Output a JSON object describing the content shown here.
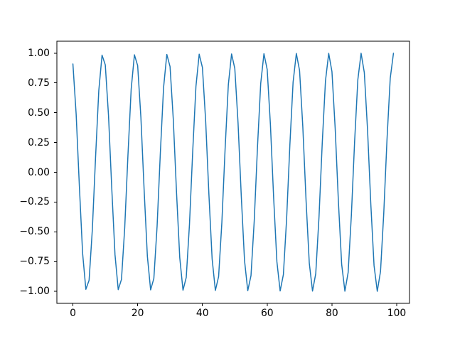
{
  "figure": {
    "background": "#ffffff",
    "axes_color": "#000000",
    "tick_label_color": "#000000"
  },
  "chart_data": {
    "type": "line",
    "title": "",
    "xlabel": "",
    "ylabel": "",
    "grid": false,
    "legend": null,
    "xlim": [
      -4.95,
      103.95
    ],
    "ylim": [
      -1.1,
      1.1
    ],
    "xticks": {
      "values": [
        0,
        20,
        40,
        60,
        80,
        100
      ],
      "labels": [
        "0",
        "20",
        "40",
        "60",
        "80",
        "100"
      ]
    },
    "yticks": {
      "values": [
        1.0,
        0.75,
        0.5,
        0.25,
        0.0,
        -0.25,
        -0.5,
        -0.75,
        -1.0
      ],
      "labels": [
        "1.00",
        "0.75",
        "0.50",
        "0.25",
        "0.00",
        "−0.25",
        "−0.50",
        "−0.75",
        "−1.00"
      ]
    },
    "series": [
      {
        "name": "",
        "color": "#1f77b4",
        "linewidth": 1.5,
        "x": [
          0,
          1,
          2,
          3,
          4,
          5,
          6,
          7,
          8,
          9,
          10,
          11,
          12,
          13,
          14,
          15,
          16,
          17,
          18,
          19,
          20,
          21,
          22,
          23,
          24,
          25,
          26,
          27,
          28,
          29,
          30,
          31,
          32,
          33,
          34,
          35,
          36,
          37,
          38,
          39,
          40,
          41,
          42,
          43,
          44,
          45,
          46,
          47,
          48,
          49,
          50,
          51,
          52,
          53,
          54,
          55,
          56,
          57,
          58,
          59,
          60,
          61,
          62,
          63,
          64,
          65,
          66,
          67,
          68,
          69,
          70,
          71,
          72,
          73,
          74,
          75,
          76,
          77,
          78,
          79,
          80,
          81,
          82,
          83,
          84,
          85,
          86,
          87,
          88,
          89,
          90,
          91,
          92,
          93,
          94,
          95,
          96,
          97,
          98,
          99
        ],
        "y": [
          0.909,
          0.489,
          -0.118,
          -0.681,
          -0.982,
          -0.906,
          -0.482,
          0.127,
          0.687,
          0.983,
          0.902,
          0.475,
          -0.135,
          -0.692,
          -0.985,
          -0.899,
          -0.467,
          0.143,
          0.699,
          0.986,
          0.895,
          0.46,
          -0.151,
          -0.705,
          -0.987,
          -0.891,
          -0.453,
          0.16,
          0.711,
          0.989,
          0.887,
          0.445,
          -0.168,
          -0.717,
          -0.99,
          -0.883,
          -0.438,
          0.176,
          0.722,
          0.991,
          0.879,
          0.43,
          -0.185,
          -0.728,
          -0.992,
          -0.875,
          -0.423,
          0.193,
          0.734,
          0.993,
          0.871,
          0.415,
          -0.201,
          -0.74,
          -0.994,
          -0.867,
          -0.407,
          0.209,
          0.745,
          0.995,
          0.863,
          0.399,
          -0.217,
          -0.751,
          -0.996,
          -0.859,
          -0.391,
          0.226,
          0.756,
          0.997,
          0.854,
          0.384,
          -0.234,
          -0.762,
          -0.997,
          -0.85,
          -0.376,
          0.242,
          0.767,
          0.998,
          0.845,
          0.368,
          -0.25,
          -0.772,
          -0.998,
          -0.841,
          -0.36,
          0.258,
          0.778,
          0.999,
          0.836,
          0.352,
          -0.266,
          -0.783,
          -0.999,
          -0.832,
          -0.344,
          0.274,
          0.789,
          0.999
        ]
      }
    ]
  }
}
